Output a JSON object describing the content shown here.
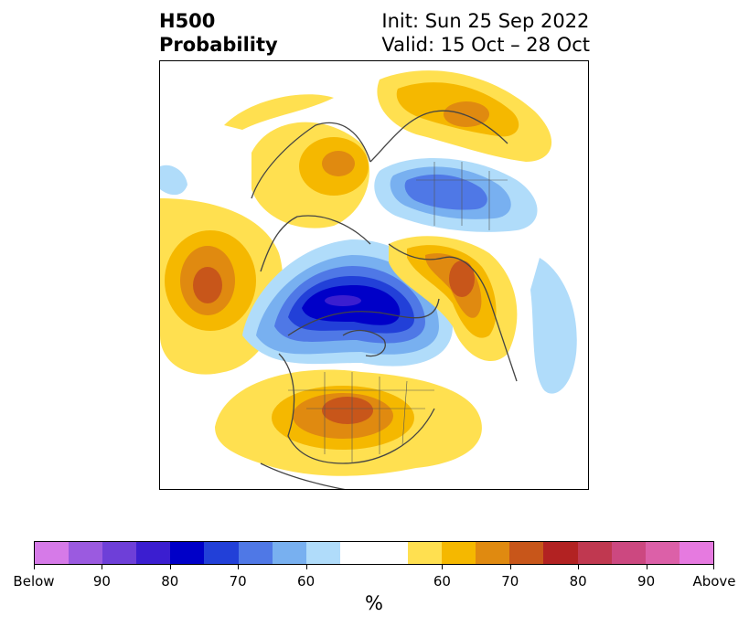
{
  "title": {
    "left_line1": "H500",
    "left_line2": "Probability",
    "right_line1": "Init: Sun 25 Sep 2022",
    "right_line2": "Valid: 15 Oct – 28 Oct"
  },
  "colorbar": {
    "unit": "%",
    "colors": [
      "#d67ae8",
      "#9b5ae0",
      "#6e3fd8",
      "#3b1ed0",
      "#0000c8",
      "#2240d8",
      "#4f78e6",
      "#78b0f0",
      "#b0dcfa",
      "#ffffff",
      "#ffffff",
      "#ffe050",
      "#f5b800",
      "#e08a10",
      "#c8561a",
      "#b22222",
      "#c03850",
      "#cc4880",
      "#dc60a8",
      "#e67ae0"
    ],
    "tick_labels": [
      "Below",
      "90",
      "80",
      "70",
      "60",
      "60",
      "70",
      "80",
      "90",
      "Above"
    ],
    "tick_index": [
      0,
      2,
      4,
      6,
      8,
      12,
      14,
      16,
      18,
      20
    ]
  },
  "map": {
    "projection": "north-polar-stereographic",
    "features": [
      {
        "name": "positive-anomaly-pacific",
        "sign": "above",
        "peak_pct": 80
      },
      {
        "name": "positive-anomaly-north-america",
        "sign": "above",
        "peak_pct": 80
      },
      {
        "name": "positive-anomaly-siberia",
        "sign": "above",
        "peak_pct": 80
      },
      {
        "name": "positive-anomaly-scandinavia",
        "sign": "above",
        "peak_pct": 70
      },
      {
        "name": "positive-anomaly-east-asia",
        "sign": "above",
        "peak_pct": 70
      },
      {
        "name": "negative-anomaly-arctic-canada",
        "sign": "below",
        "peak_pct": 90
      },
      {
        "name": "negative-anomaly-europe",
        "sign": "below",
        "peak_pct": 70
      },
      {
        "name": "negative-anomaly-western-pacific",
        "sign": "below",
        "peak_pct": 60
      }
    ]
  }
}
